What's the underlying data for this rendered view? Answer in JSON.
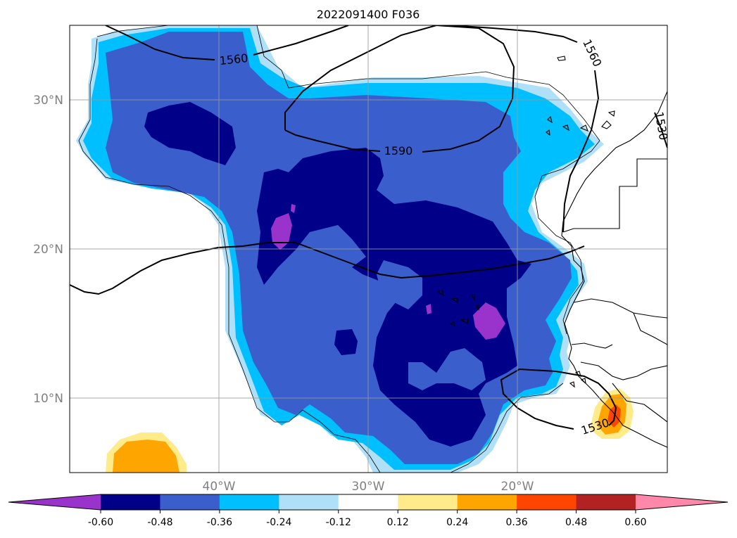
{
  "title": "2022091400 F036",
  "map": {
    "lon_range": [
      -50,
      -10
    ],
    "lat_range": [
      5,
      35
    ],
    "lon_ticks": [
      {
        "value": -40,
        "label": "40°W"
      },
      {
        "value": -30,
        "label": "30°W"
      },
      {
        "value": -20,
        "label": "20°W"
      }
    ],
    "lat_ticks": [
      {
        "value": 30,
        "label": "30°N"
      },
      {
        "value": 20,
        "label": "20°N"
      },
      {
        "value": 10,
        "label": "10°N"
      }
    ],
    "grid": true
  },
  "contours": [
    {
      "value": 1560,
      "label": "1560"
    },
    {
      "value": 1590,
      "label": "1590"
    },
    {
      "value": 1530,
      "label": "1530"
    }
  ],
  "colorbar": {
    "orientation": "horizontal",
    "extend": "both",
    "colors": [
      "#9933cc",
      "#000088",
      "#3a5fcd",
      "#00bfff",
      "#b0e0f8",
      "#ffffff",
      "#ffeb8a",
      "#ffa500",
      "#ff4500",
      "#b22222",
      "#ff88aa"
    ],
    "ticks": [
      "-0.60",
      "-0.48",
      "-0.36",
      "-0.24",
      "-0.12",
      "0.12",
      "0.24",
      "0.36",
      "0.48",
      "0.60"
    ],
    "tick_values": [
      -0.6,
      -0.48,
      -0.36,
      -0.24,
      -0.12,
      0.12,
      0.24,
      0.36,
      0.48,
      0.6
    ]
  },
  "colors": {
    "purple": "#9933cc",
    "navy": "#000088",
    "royal": "#3a5fcd",
    "cyan": "#00bfff",
    "lightblue": "#b0e0f8",
    "yellow": "#ffeb8a",
    "orange": "#ffa500",
    "red": "#ff4500"
  }
}
